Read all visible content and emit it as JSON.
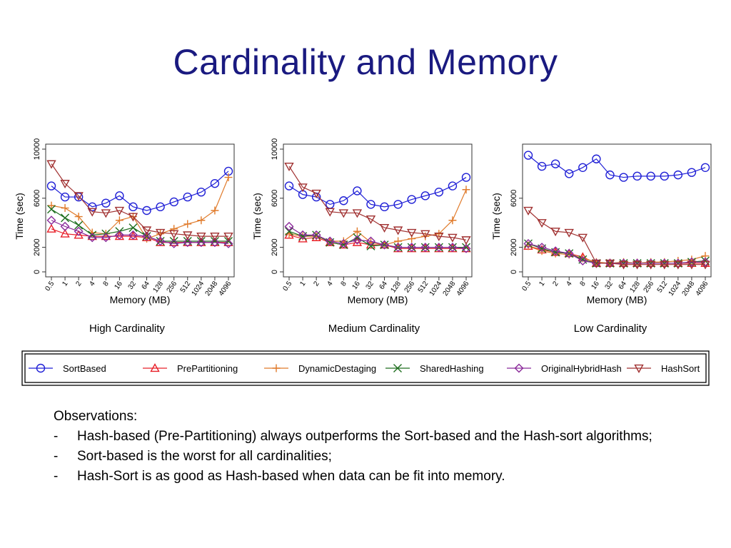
{
  "slide": {
    "title": "Cardinality and Memory"
  },
  "colors": {
    "SortBased": "#1f1fd6",
    "PrePartitioning": "#e8202a",
    "DynamicDestaging": "#e07a2a",
    "SharedHashing": "#1e6e1e",
    "OriginalHybridHash": "#8a2a9a",
    "HashSort": "#a03030"
  },
  "legend": {
    "entries": [
      {
        "name": "SortBased",
        "marker": "circle"
      },
      {
        "name": "PrePartitioning",
        "marker": "triangle-up"
      },
      {
        "name": "DynamicDestaging",
        "marker": "plus"
      },
      {
        "name": "SharedHashing",
        "marker": "cross"
      },
      {
        "name": "OriginalHybridHash",
        "marker": "diamond"
      },
      {
        "name": "HashSort",
        "marker": "triangle-down"
      }
    ]
  },
  "chart_data": [
    {
      "type": "line",
      "caption": "High Cardinality",
      "xlabel": "Memory (MB)",
      "ylabel": "Time (sec)",
      "categories": [
        "0.5",
        "1",
        "2",
        "4",
        "8",
        "16",
        "32",
        "64",
        "128",
        "256",
        "512",
        "1024",
        "2048",
        "4096"
      ],
      "yticks": [
        0,
        2000,
        6000,
        10000
      ],
      "ylim": [
        0,
        10000
      ],
      "series": [
        {
          "name": "SortBased",
          "values": [
            7000,
            6100,
            6100,
            5300,
            5600,
            6200,
            5300,
            5000,
            5300,
            5700,
            6100,
            6500,
            7200,
            8200
          ]
        },
        {
          "name": "PrePartitioning",
          "values": [
            3500,
            3100,
            3000,
            2900,
            2900,
            2900,
            2900,
            2800,
            2400,
            2400,
            2400,
            2400,
            2400,
            2400
          ]
        },
        {
          "name": "DynamicDestaging",
          "values": [
            5400,
            5200,
            4500,
            3200,
            3100,
            4200,
            4500,
            2700,
            3100,
            3500,
            3900,
            4200,
            5000,
            7700
          ]
        },
        {
          "name": "SharedHashing",
          "values": [
            5100,
            4400,
            3800,
            3000,
            3100,
            3300,
            3600,
            2900,
            2500,
            2500,
            2500,
            2500,
            2500,
            2500
          ]
        },
        {
          "name": "OriginalHybridHash",
          "values": [
            4200,
            3700,
            3300,
            2800,
            2800,
            3000,
            3000,
            2900,
            2500,
            2300,
            2400,
            2400,
            2400,
            2300
          ]
        },
        {
          "name": "HashSort",
          "values": [
            8800,
            7200,
            6200,
            4900,
            4800,
            5000,
            4500,
            3400,
            3200,
            3100,
            3000,
            2900,
            2900,
            2900
          ]
        }
      ]
    },
    {
      "type": "line",
      "caption": "Medium Cardinality",
      "xlabel": "Memory (MB)",
      "ylabel": "Time (sec)",
      "categories": [
        "0.5",
        "1",
        "2",
        "4",
        "8",
        "16",
        "32",
        "64",
        "128",
        "256",
        "512",
        "1024",
        "2048",
        "4096"
      ],
      "yticks": [
        0,
        2000,
        6000,
        10000
      ],
      "ylim": [
        0,
        10000
      ],
      "series": [
        {
          "name": "SortBased",
          "values": [
            7000,
            6300,
            6100,
            5500,
            5800,
            6600,
            5500,
            5300,
            5500,
            5900,
            6200,
            6500,
            7000,
            7700
          ]
        },
        {
          "name": "PrePartitioning",
          "values": [
            3000,
            2700,
            2800,
            2400,
            2200,
            2400,
            2200,
            2200,
            1900,
            1900,
            1900,
            1900,
            1900,
            1900
          ]
        },
        {
          "name": "DynamicDestaging",
          "values": [
            3100,
            2900,
            2900,
            2500,
            2500,
            3300,
            2400,
            2200,
            2500,
            2700,
            2900,
            3100,
            4200,
            6700
          ]
        },
        {
          "name": "SharedHashing",
          "values": [
            3300,
            2900,
            3000,
            2400,
            2200,
            2800,
            2100,
            2200,
            2000,
            2000,
            2000,
            2000,
            2000,
            2000
          ]
        },
        {
          "name": "OriginalHybridHash",
          "values": [
            3700,
            3000,
            3000,
            2500,
            2300,
            2600,
            2500,
            2200,
            2000,
            2000,
            2000,
            2000,
            2000,
            1900
          ]
        },
        {
          "name": "HashSort",
          "values": [
            8600,
            6900,
            6400,
            4900,
            4800,
            4800,
            4300,
            3600,
            3400,
            3200,
            3100,
            2900,
            2800,
            2600
          ]
        }
      ]
    },
    {
      "type": "line",
      "caption": "Low Cardinality",
      "xlabel": "Memory (MB)",
      "ylabel": "Time (sec)",
      "categories": [
        "0.5",
        "1",
        "2",
        "4",
        "8",
        "16",
        "32",
        "64",
        "128",
        "256",
        "512",
        "1024",
        "2048",
        "4096"
      ],
      "yticks": [
        0,
        2000,
        6000
      ],
      "ylim": [
        0,
        10000
      ],
      "series": [
        {
          "name": "SortBased",
          "values": [
            9500,
            8600,
            8800,
            8000,
            8500,
            9200,
            7900,
            7700,
            7800,
            7800,
            7800,
            7900,
            8100,
            8500
          ]
        },
        {
          "name": "PrePartitioning",
          "values": [
            2100,
            1800,
            1600,
            1500,
            1200,
            700,
            700,
            700,
            700,
            700,
            700,
            700,
            700,
            700
          ]
        },
        {
          "name": "DynamicDestaging",
          "values": [
            2100,
            1700,
            1500,
            1400,
            1100,
            800,
            700,
            800,
            700,
            800,
            800,
            900,
            1000,
            1300
          ]
        },
        {
          "name": "SharedHashing",
          "values": [
            2300,
            1900,
            1600,
            1500,
            1000,
            700,
            700,
            700,
            700,
            700,
            700,
            700,
            800,
            900
          ]
        },
        {
          "name": "OriginalHybridHash",
          "values": [
            2300,
            2000,
            1700,
            1500,
            900,
            700,
            700,
            700,
            700,
            700,
            700,
            700,
            800,
            800
          ]
        },
        {
          "name": "HashSort",
          "values": [
            5000,
            4000,
            3300,
            3200,
            2800,
            700,
            700,
            600,
            600,
            600,
            600,
            600,
            600,
            600
          ]
        }
      ]
    }
  ],
  "observations": {
    "heading": "Observations:",
    "items": [
      {
        "dash": "-",
        "text": "Hash-based (Pre-Partitioning) always outperforms the Sort-based and the Hash-sort algorithms;"
      },
      {
        "dash": "-",
        "text": "Sort-based is the worst for all cardinalities;"
      },
      {
        "dash": "-",
        "text": "Hash-Sort is as good as Hash-based when data can be fit into memory."
      }
    ]
  }
}
